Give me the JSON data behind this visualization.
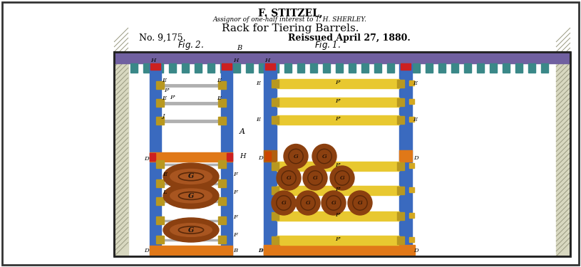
{
  "title1": "F. STITZEL,",
  "title2": "Assignor of one-half interest to T. H. SHERLEY.",
  "title3": "Rack for Tiering Barrels.",
  "patent_no": "No. 9,175.",
  "reissued": "Reissued April 27, 1880.",
  "fig2_label": "Fig. 2.",
  "fig1_label": "Fig. 1.",
  "blue_col": "#3a6abf",
  "yellow_rail": "#e8c830",
  "orange_base": "#e07818",
  "teal_post": "#3a8888",
  "barrel_fill": "#8b4010",
  "barrel_highlight": "#a85520",
  "purple_top": "#7060a0",
  "hatch_bg": "#d8d8c0",
  "gold_bolt": "#b89820",
  "red_cap": "#cc2020"
}
